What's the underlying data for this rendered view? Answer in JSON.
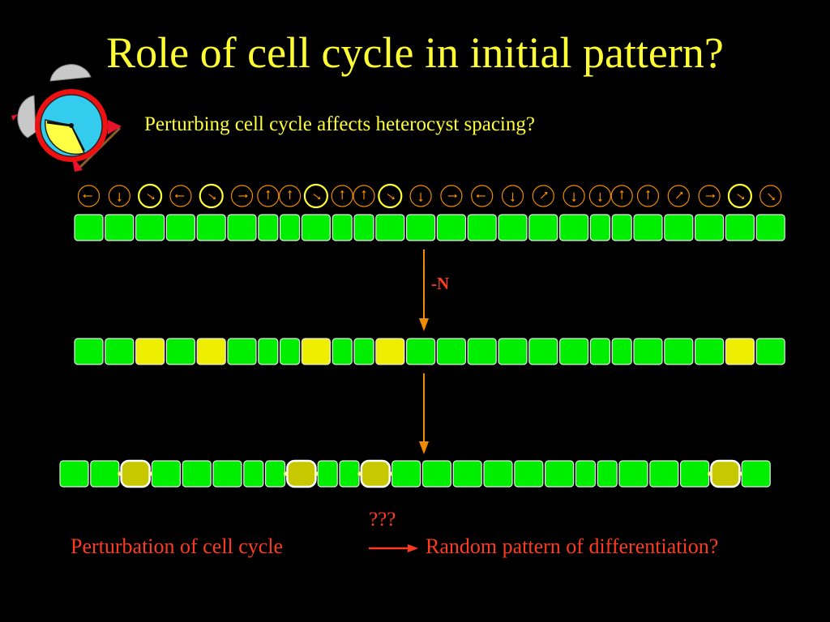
{
  "title": "Role of cell cycle in initial pattern?",
  "subtitle": "Perturbing cell cycle affects heterocyst spacing?",
  "condition_label": "-N",
  "arrow_label": "???",
  "bottom_left": "Perturbation of cell cycle",
  "bottom_right": "Random pattern of differentiation?",
  "colors": {
    "background": "#000000",
    "title": "#ffff33",
    "vegetative_cell": "#00ee00",
    "proheterocyst": "#eeee00",
    "heterocyst": "#c8c800",
    "arrow": "#f08a00",
    "red_text": "#ff3b1f",
    "clock_face": "#33ccee",
    "clock_rim": "#ee1111"
  },
  "icons": [
    "alarm-clock-icon",
    "cell-cycle-phase-icon",
    "down-arrow-icon",
    "right-arrow-icon"
  ],
  "cell_cycle_phases": [
    "left",
    "down",
    "cycle",
    "left",
    "cycle",
    "right",
    "up",
    "up",
    "cycle",
    "up",
    "up",
    "cycle",
    "down",
    "right",
    "left",
    "down",
    "upright",
    "down",
    "down",
    "up",
    "up",
    "upright",
    "right",
    "cycle",
    "downright"
  ],
  "filament_states": {
    "before": [
      "veg",
      "veg",
      "veg",
      "veg",
      "veg",
      "veg",
      "veg",
      "veg",
      "veg",
      "veg",
      "veg",
      "veg",
      "veg",
      "veg",
      "veg",
      "veg",
      "veg",
      "veg",
      "veg",
      "veg",
      "veg",
      "veg",
      "veg",
      "veg",
      "veg"
    ],
    "after_nitrogen_step": [
      "veg",
      "veg",
      "pro",
      "veg",
      "pro",
      "veg",
      "veg",
      "veg",
      "pro",
      "veg",
      "veg",
      "pro",
      "veg",
      "veg",
      "veg",
      "veg",
      "veg",
      "veg",
      "veg",
      "veg",
      "veg",
      "veg",
      "veg",
      "pro",
      "veg"
    ],
    "mature": [
      "veg",
      "veg",
      "het",
      "veg",
      "veg",
      "veg",
      "veg",
      "veg",
      "het",
      "veg",
      "veg",
      "het",
      "veg",
      "veg",
      "veg",
      "veg",
      "veg",
      "veg",
      "veg",
      "veg",
      "veg",
      "veg",
      "veg",
      "het",
      "veg"
    ]
  }
}
